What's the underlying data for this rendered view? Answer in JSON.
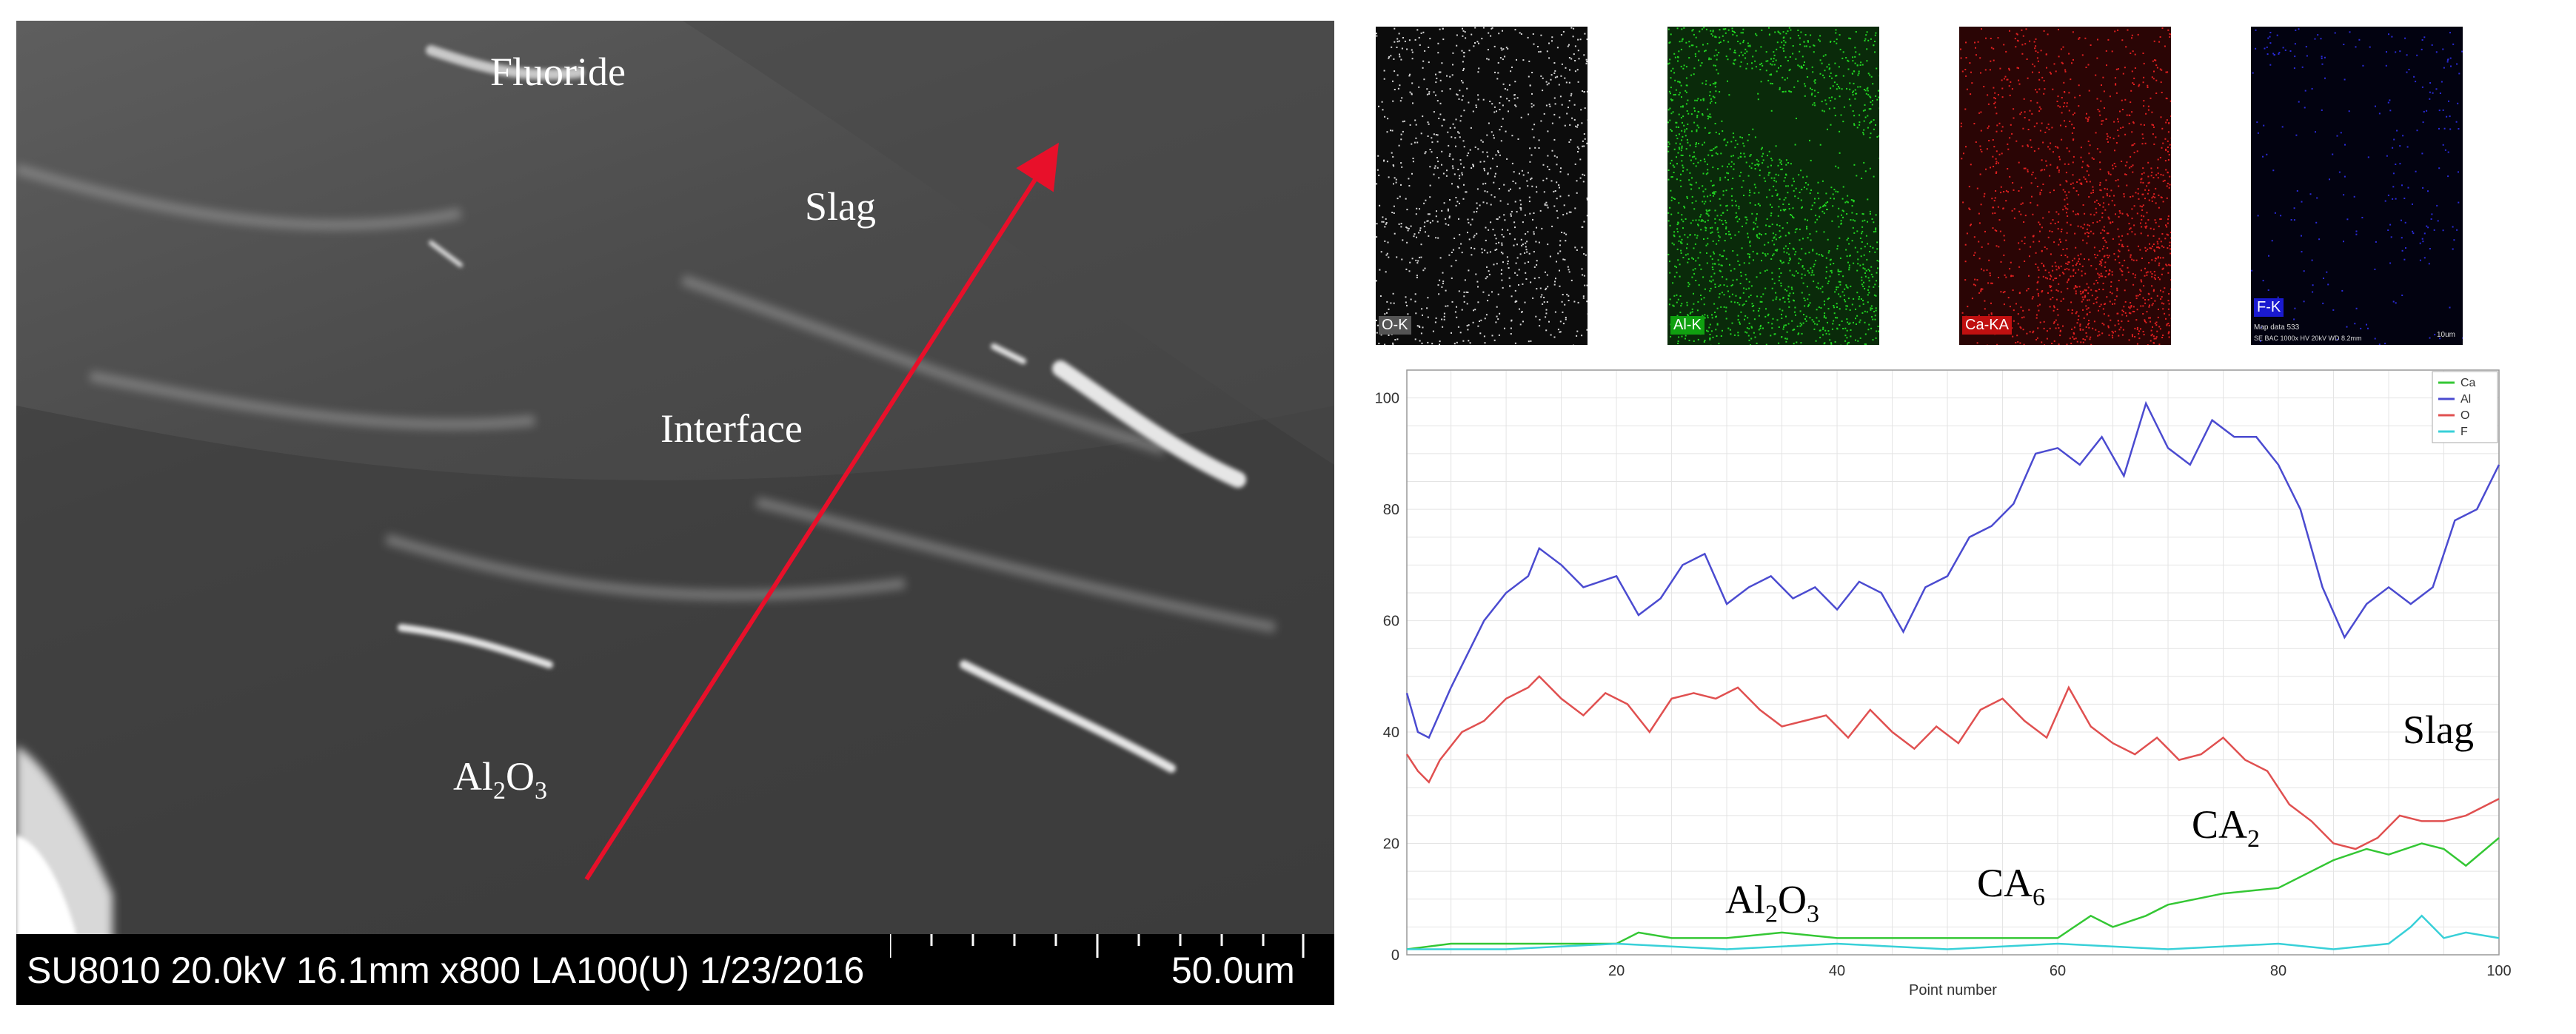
{
  "sem_image": {
    "labels": {
      "fluoride": "Fluoride",
      "slag": "Slag",
      "interface": "Interface",
      "al2o3": {
        "base1": "Al",
        "sub1": "2",
        "base2": "O",
        "sub2": "3"
      }
    },
    "info_bar": {
      "text": "SU8010 20.0kV 16.1mm x800 LA100(U) 1/23/2016",
      "scale": "50.0um"
    },
    "arrow_color": "#e8102a"
  },
  "maps": [
    {
      "label": "O-K",
      "color": "#d8d8d8",
      "bg": "#0c0c0c",
      "label_bg": "#555555"
    },
    {
      "label": "Al-K",
      "color": "#22d422",
      "bg": "#0a2a0a",
      "label_bg": "#10a010"
    },
    {
      "label": "Ca-KA",
      "color": "#e02020",
      "bg": "#2a0505",
      "label_bg": "#c01010"
    },
    {
      "label": "F-K",
      "color": "#2a2ad8",
      "bg": "#020210",
      "label_bg": "#1a1ad0",
      "footer": "Map data 533",
      "footer2": "SE  BAC 1000x HV 20kV WD 8.2mm",
      "scale": "10um"
    }
  ],
  "chart_data": {
    "type": "line",
    "xlabel": "Point number",
    "ylabel": "",
    "xlim": [
      1,
      100
    ],
    "ylim": [
      0,
      105
    ],
    "xticks": [
      20,
      40,
      60,
      80,
      100
    ],
    "yticks": [
      0,
      20,
      40,
      60,
      80,
      100
    ],
    "grid": true,
    "legend": "top-right",
    "series": [
      {
        "name": "Ca",
        "color": "#34c734",
        "x": [
          1,
          5,
          10,
          15,
          20,
          22,
          25,
          30,
          35,
          40,
          45,
          50,
          55,
          60,
          63,
          65,
          68,
          70,
          75,
          80,
          85,
          88,
          90,
          93,
          95,
          97,
          100
        ],
        "y": [
          1,
          2,
          2,
          2,
          2,
          4,
          3,
          3,
          4,
          3,
          3,
          3,
          3,
          3,
          7,
          5,
          7,
          9,
          11,
          12,
          17,
          19,
          18,
          20,
          19,
          16,
          21
        ]
      },
      {
        "name": "Al",
        "color": "#4b4bd0",
        "x": [
          1,
          2,
          3,
          5,
          8,
          10,
          12,
          13,
          15,
          17,
          20,
          22,
          24,
          26,
          28,
          30,
          32,
          34,
          36,
          38,
          40,
          42,
          44,
          46,
          48,
          50,
          52,
          54,
          56,
          58,
          60,
          62,
          64,
          66,
          68,
          70,
          72,
          74,
          76,
          78,
          80,
          82,
          84,
          86,
          88,
          90,
          92,
          94,
          96,
          98,
          100
        ],
        "y": [
          47,
          40,
          39,
          48,
          60,
          65,
          68,
          73,
          70,
          66,
          68,
          61,
          64,
          70,
          72,
          63,
          66,
          68,
          64,
          66,
          62,
          67,
          65,
          58,
          66,
          68,
          75,
          77,
          81,
          90,
          91,
          88,
          93,
          86,
          99,
          91,
          88,
          96,
          93,
          93,
          88,
          80,
          66,
          57,
          63,
          66,
          63,
          66,
          78,
          80,
          88
        ]
      },
      {
        "name": "O",
        "color": "#e05050",
        "x": [
          1,
          2,
          3,
          4,
          6,
          8,
          10,
          12,
          13,
          15,
          17,
          19,
          21,
          23,
          25,
          27,
          29,
          31,
          33,
          35,
          37,
          39,
          41,
          43,
          45,
          47,
          49,
          51,
          53,
          55,
          57,
          59,
          61,
          63,
          65,
          67,
          69,
          71,
          73,
          75,
          77,
          79,
          81,
          83,
          85,
          87,
          89,
          91,
          93,
          95,
          97,
          100
        ],
        "y": [
          36,
          33,
          31,
          35,
          40,
          42,
          46,
          48,
          50,
          46,
          43,
          47,
          45,
          40,
          46,
          47,
          46,
          48,
          44,
          41,
          42,
          43,
          39,
          44,
          40,
          37,
          41,
          38,
          44,
          46,
          42,
          39,
          48,
          41,
          38,
          36,
          39,
          35,
          36,
          39,
          35,
          33,
          27,
          24,
          20,
          19,
          21,
          25,
          24,
          24,
          25,
          28
        ]
      },
      {
        "name": "F",
        "color": "#38d0d8",
        "x": [
          1,
          10,
          20,
          30,
          40,
          50,
          60,
          70,
          80,
          85,
          90,
          92,
          93,
          95,
          97,
          100
        ],
        "y": [
          1,
          1,
          2,
          1,
          2,
          1,
          2,
          1,
          2,
          1,
          2,
          5,
          7,
          3,
          4,
          3
        ]
      }
    ],
    "annotations": {
      "slag": "Slag",
      "ca2": {
        "base": "CA",
        "sub": "2"
      },
      "ca6": {
        "base": "CA",
        "sub": "6"
      },
      "al2o3": {
        "base1": "Al",
        "sub1": "2",
        "base2": "O",
        "sub2": "3"
      }
    }
  }
}
